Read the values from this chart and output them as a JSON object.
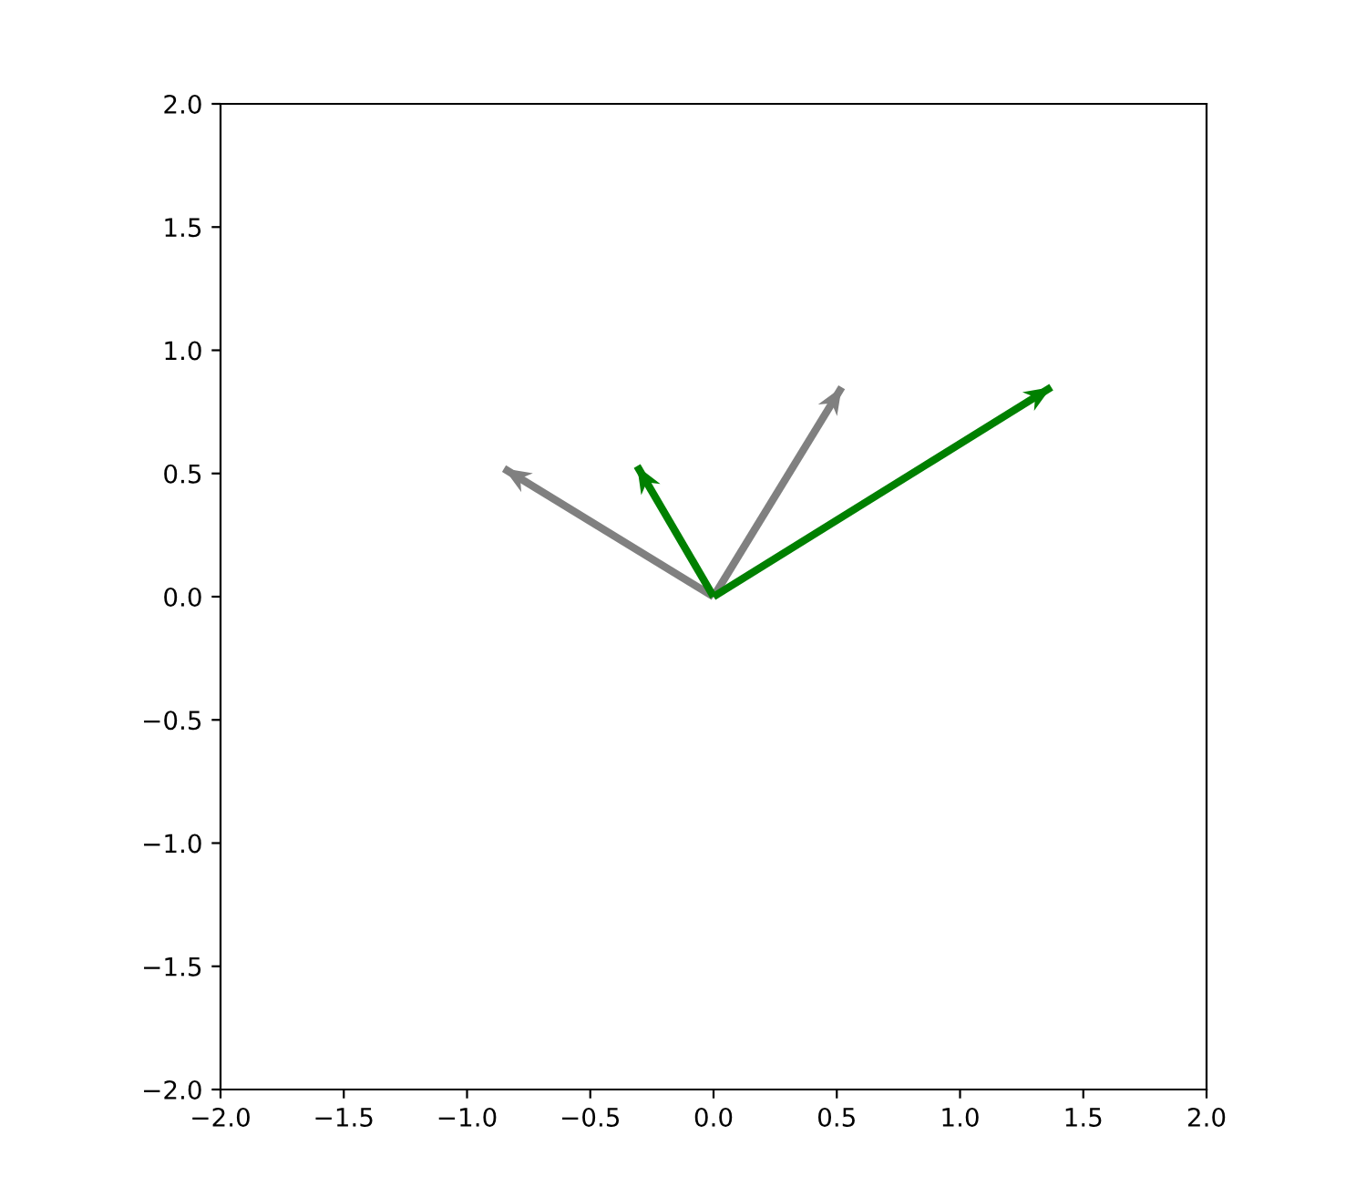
{
  "chart_data": {
    "type": "line",
    "marker": "none",
    "grid": false,
    "series": [
      {
        "color": "#808080",
        "x": [
          0,
          -0.85
        ],
        "values": [
          0,
          0.52
        ]
      },
      {
        "color": "#808080",
        "x": [
          0,
          0.52
        ],
        "values": [
          0,
          0.85
        ]
      },
      {
        "color": "#008000",
        "x": [
          0,
          -0.31
        ],
        "values": [
          0,
          0.53
        ]
      },
      {
        "color": "#008000",
        "x": [
          0,
          1.37
        ],
        "values": [
          0,
          0.85
        ]
      }
    ],
    "xlim": [
      -2,
      2
    ],
    "ylim": [
      -2,
      2
    ],
    "xticks": [
      {
        "value": -2,
        "label": "−2.0"
      },
      {
        "value": -1.5,
        "label": "−1.5"
      },
      {
        "value": -1,
        "label": "−1.0"
      },
      {
        "value": -0.5,
        "label": "−0.5"
      },
      {
        "value": 0,
        "label": "0.0"
      },
      {
        "value": 0.5,
        "label": "0.5"
      },
      {
        "value": 1,
        "label": "1.0"
      },
      {
        "value": 1.5,
        "label": "1.5"
      },
      {
        "value": 2,
        "label": "2.0"
      }
    ],
    "yticks": [
      {
        "value": -2,
        "label": "−2.0"
      },
      {
        "value": -1.5,
        "label": "−1.5"
      },
      {
        "value": -1,
        "label": "−1.0"
      },
      {
        "value": -0.5,
        "label": "−0.5"
      },
      {
        "value": 0,
        "label": "0.0"
      },
      {
        "value": 0.5,
        "label": "0.5"
      },
      {
        "value": 1,
        "label": "1.0"
      },
      {
        "value": 1.5,
        "label": "1.5"
      },
      {
        "value": 2,
        "label": "2.0"
      }
    ]
  }
}
